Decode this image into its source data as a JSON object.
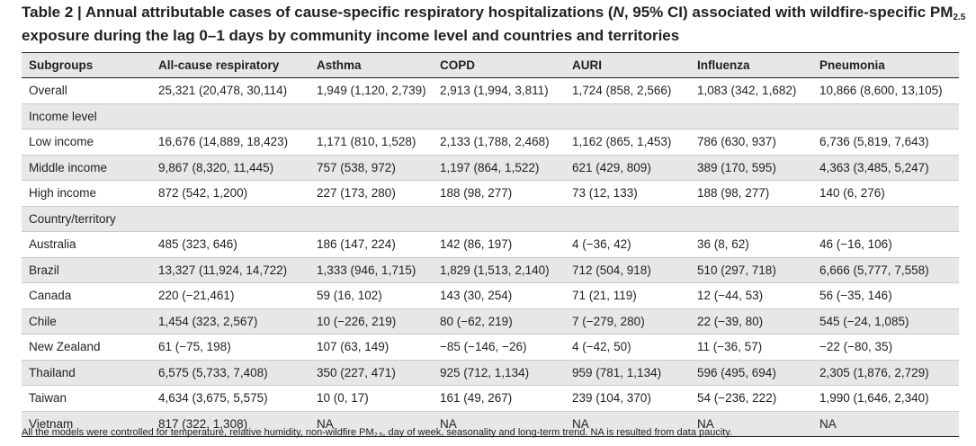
{
  "caption": {
    "part1": "Table 2 | Annual attributable cases of cause-specific respiratory hospitalizations (",
    "n": "N",
    "part2": ", 95% CI) associated with wildfire-specific PM",
    "pm_sub": "2.5",
    "part3": " exposure during the lag 0–1 days by community income level and countries and territories"
  },
  "columns": [
    "Subgroups",
    "All-cause respiratory",
    "Asthma",
    "COPD",
    "AURI",
    "Influenza",
    "Pneumonia"
  ],
  "rows": [
    {
      "label": "Overall",
      "cells": [
        "25,321 (20,478, 30,114)",
        "1,949 (1,120, 2,739)",
        "2,913 (1,994, 3,811)",
        "1,724 (858, 2,566)",
        "1,083 (342, 1,682)",
        "10,866 (8,600, 13,105)"
      ]
    },
    {
      "label": "Income level",
      "cells": [
        "",
        "",
        "",
        "",
        "",
        ""
      ]
    },
    {
      "label": "Low income",
      "cells": [
        "16,676 (14,889, 18,423)",
        "1,171 (810, 1,528)",
        "2,133 (1,788, 2,468)",
        "1,162 (865, 1,453)",
        "786 (630, 937)",
        "6,736 (5,819, 7,643)"
      ]
    },
    {
      "label": "Middle income",
      "cells": [
        "9,867 (8,320, 11,445)",
        "757 (538, 972)",
        "1,197 (864, 1,522)",
        "621 (429, 809)",
        "389 (170, 595)",
        "4,363 (3,485, 5,247)"
      ]
    },
    {
      "label": "High income",
      "cells": [
        "872 (542, 1,200)",
        "227 (173, 280)",
        "188 (98, 277)",
        "73 (12, 133)",
        "188 (98, 277)",
        "140 (6, 276)"
      ]
    },
    {
      "label": "Country/territory",
      "cells": [
        "",
        "",
        "",
        "",
        "",
        ""
      ]
    },
    {
      "label": "Australia",
      "cells": [
        "485 (323, 646)",
        "186 (147, 224)",
        "142 (86, 197)",
        "4 (−36, 42)",
        "36 (8, 62)",
        "46 (−16, 106)"
      ]
    },
    {
      "label": "Brazil",
      "cells": [
        "13,327 (11,924, 14,722)",
        "1,333 (946, 1,715)",
        "1,829 (1,513, 2,140)",
        "712 (504, 918)",
        "510 (297, 718)",
        "6,666 (5,777, 7,558)"
      ]
    },
    {
      "label": "Canada",
      "cells": [
        "220 (−21,461)",
        "59 (16, 102)",
        "143 (30, 254)",
        "71 (21, 119)",
        "12 (−44, 53)",
        "56 (−35, 146)"
      ]
    },
    {
      "label": "Chile",
      "cells": [
        "1,454 (323, 2,567)",
        "10 (−226, 219)",
        "80 (−62, 219)",
        "7 (−279, 280)",
        "22 (−39, 80)",
        "545 (−24, 1,085)"
      ]
    },
    {
      "label": "New Zealand",
      "cells": [
        "61 (−75, 198)",
        "107 (63, 149)",
        "−85 (−146, −26)",
        "4 (−42, 50)",
        "11 (−36, 57)",
        "−22 (−80, 35)"
      ]
    },
    {
      "label": "Thailand",
      "cells": [
        "6,575 (5,733, 7,408)",
        "350 (227, 471)",
        "925 (712, 1,134)",
        "959 (781, 1,134)",
        "596 (495, 694)",
        "2,305 (1,876, 2,729)"
      ]
    },
    {
      "label": "Taiwan",
      "cells": [
        "4,634 (3,675, 5,575)",
        "10 (0, 17)",
        "161 (49, 267)",
        "239 (104, 370)",
        "54 (−236, 222)",
        "1,990 (1,646, 2,340)"
      ]
    },
    {
      "label": "Vietnam",
      "cells": [
        "817 (322, 1,308)",
        "NA",
        "NA",
        "NA",
        "NA",
        "NA"
      ]
    }
  ],
  "footnote": {
    "part1": "All the models were controlled for temperature, relative humidity, non-wildfire PM",
    "pm_sub": "2.5",
    "part2": ", day of week, seasonality and long-term trend. NA is resulted from data paucity."
  }
}
